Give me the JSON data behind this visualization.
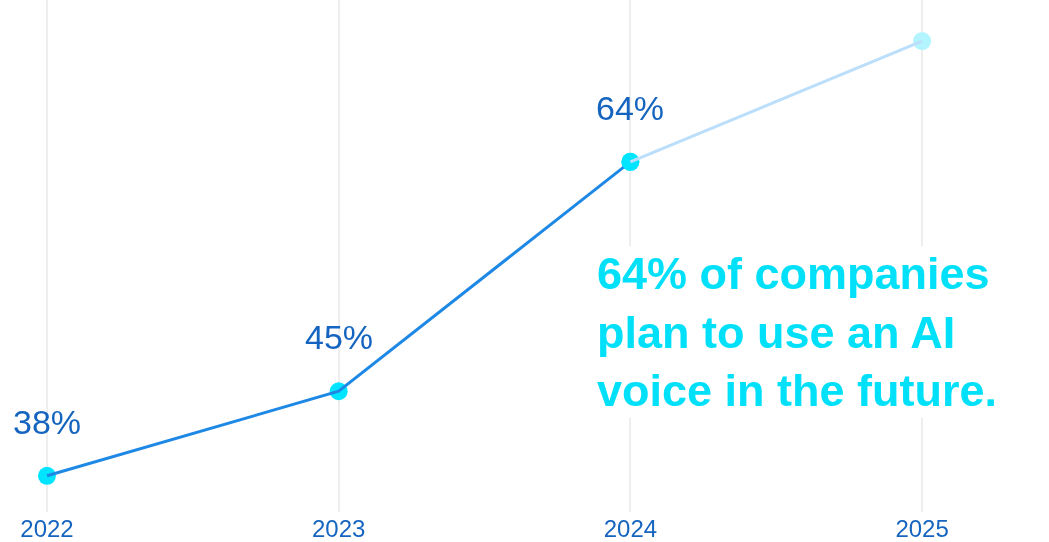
{
  "chart_data": {
    "type": "line",
    "categories": [
      "2022",
      "2023",
      "2024",
      "2025"
    ],
    "series": [
      {
        "color": "#1e88e5",
        "colors": [
          "#00e5ff",
          "#00e5ff",
          "#00e5ff",
          null
        ],
        "values": [
          38,
          45,
          64,
          null
        ],
        "value_labels": [
          "38%",
          "45%",
          "64%",
          null
        ]
      },
      {
        "color": "#bbdefb",
        "colors": [
          null,
          null,
          "#00e5ff",
          "#b2f5ff"
        ],
        "values": [
          null,
          null,
          64,
          74
        ],
        "value_labels": [
          null,
          null,
          null,
          null
        ]
      }
    ],
    "annotations": [
      "64% of companies\nplan to use an AI\nvoice in the future."
    ],
    "grid": "x",
    "marker": "circle",
    "line_style": "solid"
  }
}
